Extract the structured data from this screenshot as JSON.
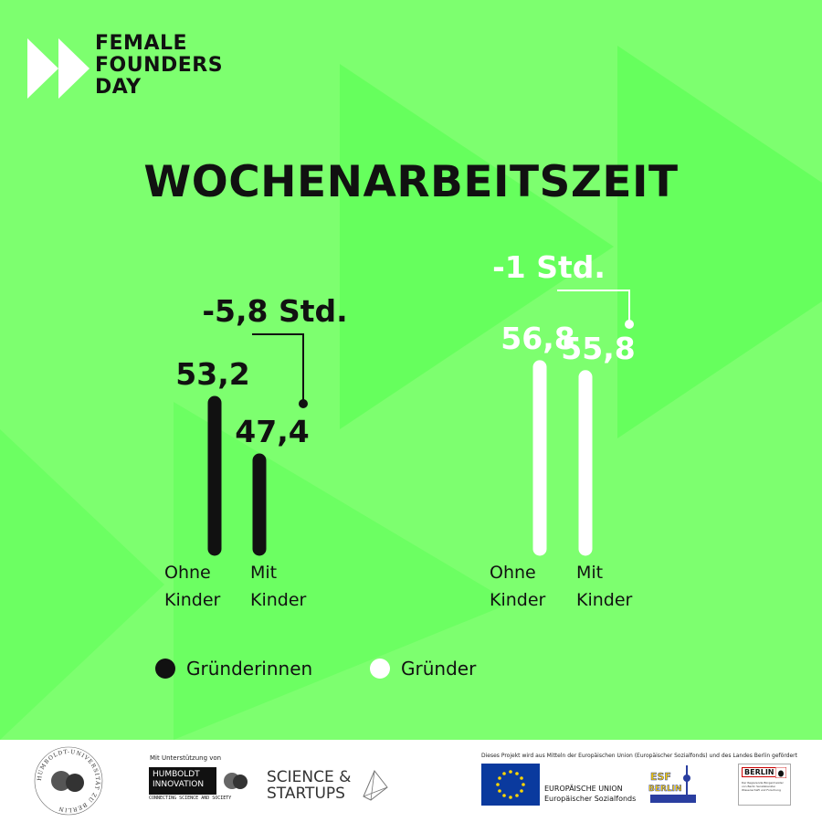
{
  "brand": {
    "logo_lines": [
      "FEMALE",
      "FOUNDERS",
      "DAY"
    ]
  },
  "colors": {
    "background": "#7dff6f",
    "background_shape": "#5fff57",
    "women": "#111111",
    "men": "#ffffff"
  },
  "chart_data": {
    "type": "bar",
    "title": "WOCHENARBEITSZEIT",
    "xlabel": "",
    "ylabel": "",
    "categories": [
      "Ohne Kinder",
      "Mit Kinder"
    ],
    "series": [
      {
        "name": "Gründerinnen",
        "values": [
          53.2,
          47.4
        ],
        "value_labels": [
          "53,2",
          "47,4"
        ],
        "difference": "-5,8 Std.",
        "color": "#111111"
      },
      {
        "name": "Gründer",
        "values": [
          56.8,
          55.8
        ],
        "value_labels": [
          "56,8",
          "55,8"
        ],
        "difference": "-1 Std.",
        "color": "#ffffff"
      }
    ],
    "grid": false,
    "legend_position": "bottom-left"
  },
  "footer": {
    "support_label": "Mit Unterstützung von",
    "hu_seal_text": "HUMBOLDT-UNIVERSITÄT ZU BERLIN",
    "hi_logo": [
      "HUMBOLDT",
      "INNOVATION"
    ],
    "hi_tagline": "CONNECTING SCIENCE AND SOCIETY",
    "ss_logo": [
      "SCIENCE &",
      "STARTUPS"
    ],
    "funding_note": "Dieses Projekt wird aus Mitteln der Europäischen Union (Europäischer Sozialfonds) und des Landes Berlin gefördert",
    "eu_lines": [
      "EUROPÄISCHE UNION",
      "Europäischer Sozialfonds"
    ],
    "esf_lines": [
      "ESF",
      "BERLIN"
    ],
    "berlin_word": "BERLIN",
    "berlin_small": "Der Regierende Bürgermeister von Berlin Senatskanzlei Wissenschaft und Forschung"
  }
}
